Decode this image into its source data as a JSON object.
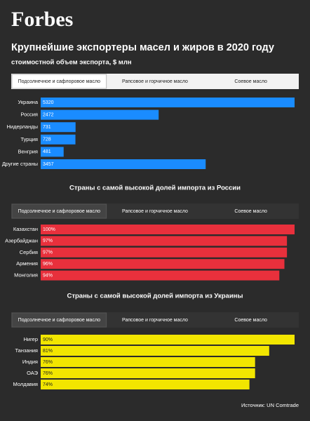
{
  "header": {
    "logo": "Forbes"
  },
  "title": "Крупнейшие экспортеры масел и жиров в 2020 году",
  "subtitle": "стоимостной объем экспорта, $ млн",
  "chart_data": [
    {
      "type": "bar",
      "orientation": "horizontal",
      "tabs": [
        "Подсолнечное и сафлоровое масло",
        "Рапсовое и горчичное масло",
        "Соевое масло"
      ],
      "active_tab": 0,
      "tabs_theme": "light",
      "categories": [
        "Украина",
        "Россия",
        "Нидерланды",
        "Турция",
        "Венгрия",
        "Другие страны"
      ],
      "values": [
        5320,
        2472,
        731,
        728,
        481,
        3457
      ],
      "color": "#1a8cff"
    },
    {
      "type": "bar",
      "orientation": "horizontal",
      "title": "Страны с самой высокой долей импорта из России",
      "tabs": [
        "Подсолнечное и сафлоровое масло",
        "Рапсовое и горчичное масло",
        "Соевое масло"
      ],
      "active_tab": 0,
      "tabs_theme": "dark",
      "categories": [
        "Казахстан",
        "Азербайджан",
        "Сербия",
        "Армения",
        "Монголия"
      ],
      "values": [
        100,
        97,
        97,
        96,
        94
      ],
      "value_labels": [
        "100%",
        "97%",
        "97%",
        "96%",
        "94%"
      ],
      "color": "#e8303c"
    },
    {
      "type": "bar",
      "orientation": "horizontal",
      "title": "Страны с самой высокой долей импорта из Украины",
      "tabs": [
        "Подсолнечное и сафлоровое масло",
        "Рапсовое и горчичное масло",
        "Соевое масло"
      ],
      "active_tab": 0,
      "tabs_theme": "dark",
      "categories": [
        "Нигер",
        "Танзания",
        "Индия",
        "ОАЭ",
        "Молдавия"
      ],
      "values": [
        90,
        81,
        76,
        76,
        74
      ],
      "value_labels": [
        "90%",
        "81%",
        "76%",
        "76%",
        "74%"
      ],
      "color": "#f2e600"
    }
  ],
  "source": "Источник: UN Comtrade"
}
